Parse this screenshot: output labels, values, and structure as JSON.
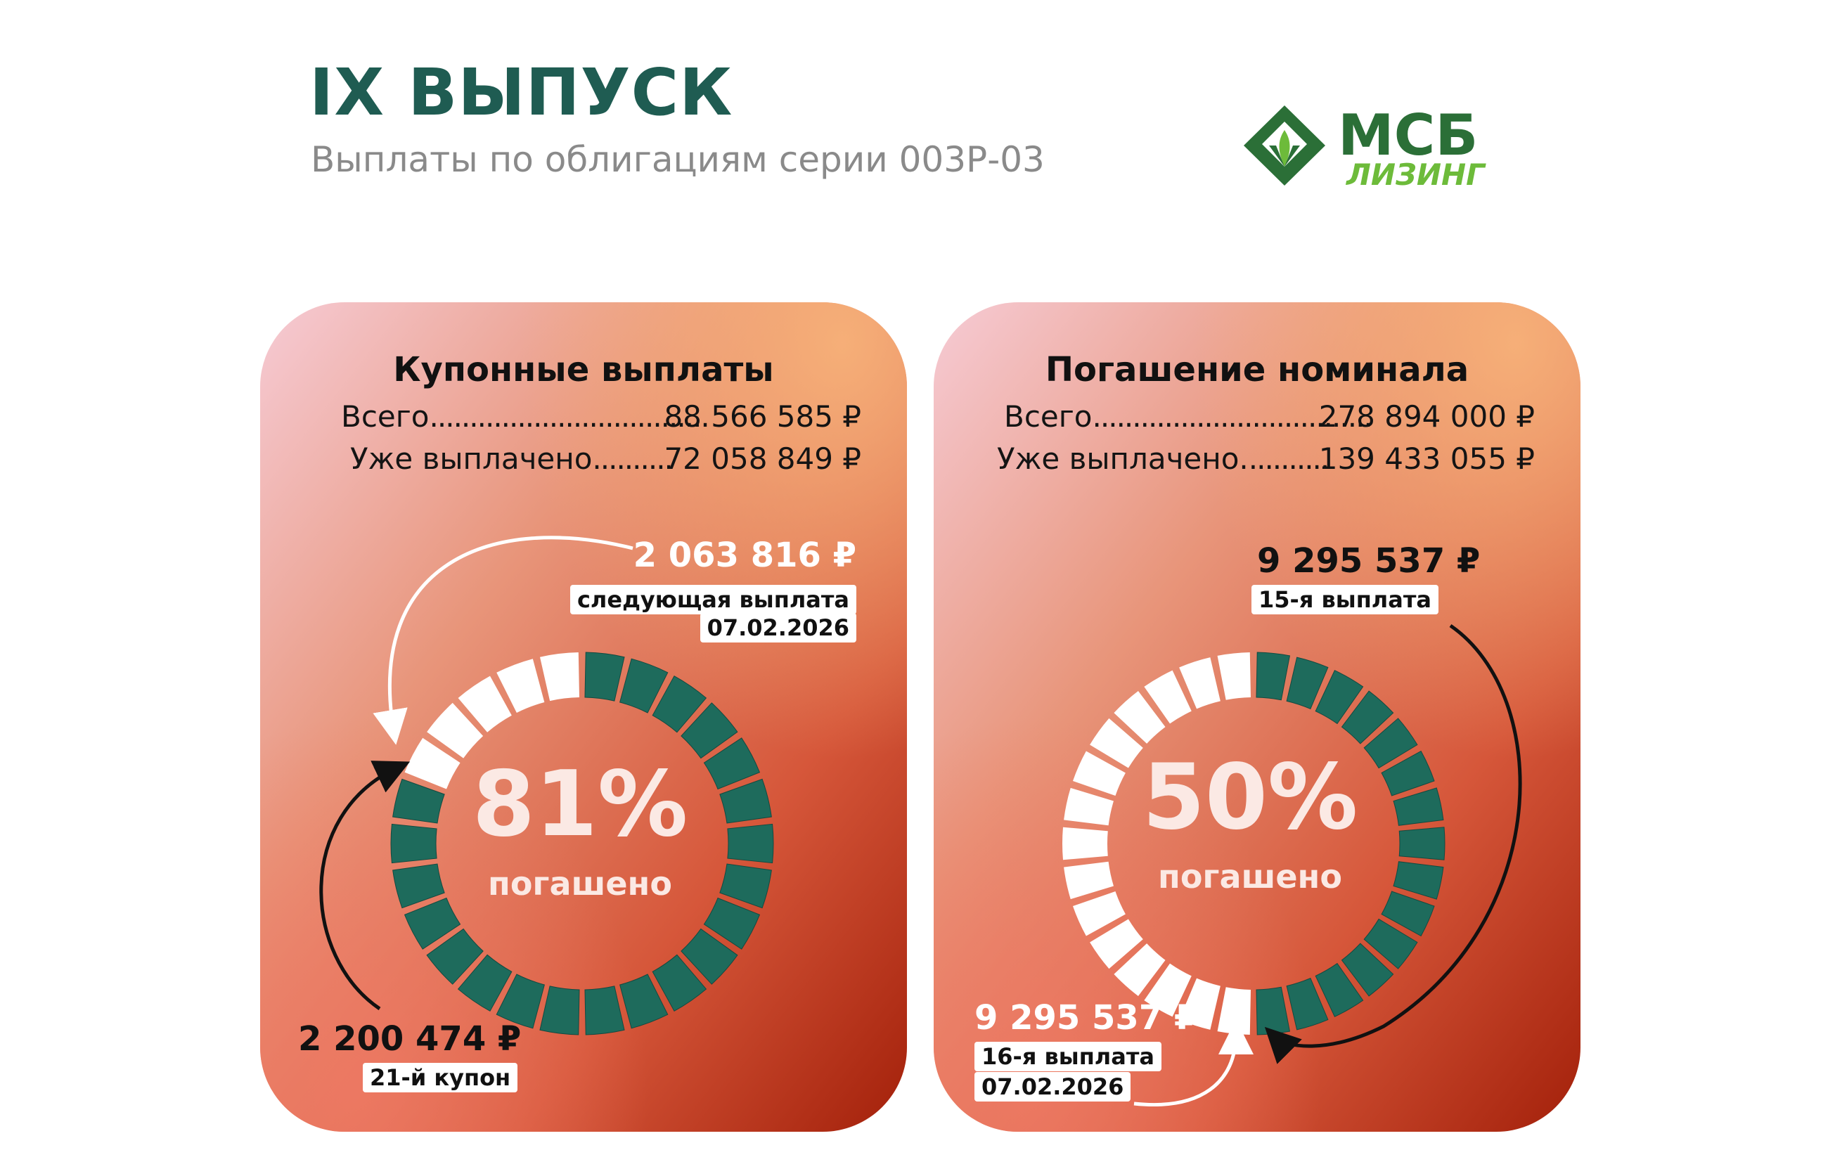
{
  "header": {
    "title": "IX ВЫПУСК",
    "subtitle": "Выплаты по облигациям серии 003Р-03"
  },
  "logo": {
    "line1": "МСБ",
    "line2": "ЛИЗИНГ",
    "icon": "leaf-diamond-icon",
    "color_dark": "#2b6f37",
    "color_light": "#6dbb3a"
  },
  "coupon": {
    "title": "Купонные выплаты",
    "total_label": "Всего",
    "total_dots": "...................................",
    "total_value": "88 566 585 ₽",
    "paid_label": "Уже выплачено",
    "paid_dots": "..........",
    "paid_value": "72 058 849 ₽",
    "percent": "81%",
    "percent_label": "погашено",
    "next_amount": "2 063 816 ₽",
    "next_tag": "следующая выплата",
    "next_date": "07.02.2026",
    "last_amount": "2 200 474 ₽",
    "last_tag": "21-й купон",
    "segments_total": 26,
    "segments_paid": 21
  },
  "nominal": {
    "title": "Погашение номинала",
    "total_label": "Всего",
    "total_dots": "...................................",
    "total_value": "278 894 000 ₽",
    "paid_label": "Уже выплачено.",
    "paid_dots": "..........",
    "paid_value": "139 433 055 ₽",
    "percent": "50%",
    "percent_label": "погашено",
    "top_amount": "9 295 537 ₽",
    "top_tag": "15-я выплата",
    "bottom_amount": "9 295 537 ₽",
    "bottom_tag": "16-я выплата",
    "bottom_date": "07.02.2026",
    "segments_total": 30,
    "segments_paid": 15
  },
  "colors": {
    "paid_segment": "#1e6b5c",
    "unpaid_segment": "#ffffff",
    "title": "#1f5c52",
    "card_dark": "#a3200a",
    "card_mid": "#d9603a",
    "card_light": "#f7c9d4"
  }
}
